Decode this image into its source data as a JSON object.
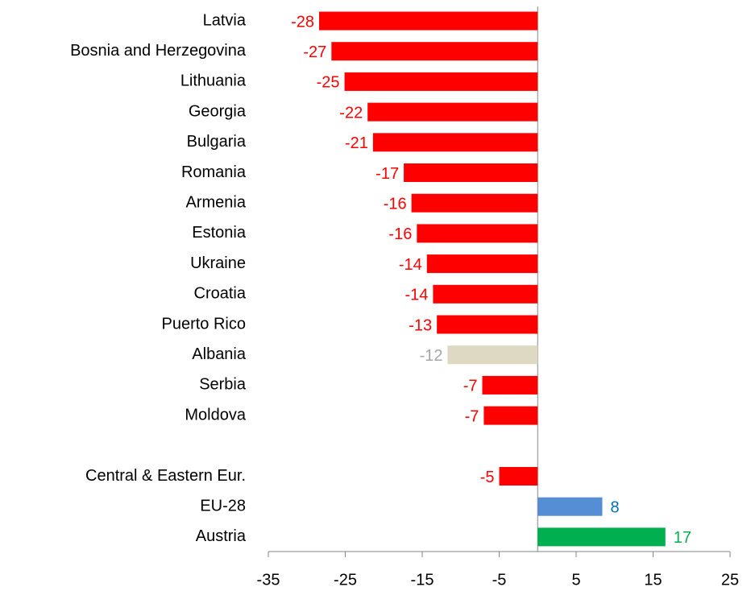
{
  "chart_data": {
    "type": "hbar",
    "categories": [
      "Latvia",
      "Bosnia and Herzegovina",
      "Lithuania",
      "Georgia",
      "Bulgaria",
      "Romania",
      "Armenia",
      "Estonia",
      "Ukraine",
      "Croatia",
      "Puerto Rico",
      "Albania",
      "Serbia",
      "Moldova",
      null,
      "Central & Eastern Eur.",
      "EU-28",
      "Austria"
    ],
    "values": [
      -28.4,
      -26.8,
      -25.1,
      -22.1,
      -21.4,
      -17.4,
      -16.4,
      -15.7,
      -14.4,
      -13.6,
      -13.1,
      -11.7,
      -7.2,
      -7.0,
      null,
      -5.0,
      8.4,
      16.6
    ],
    "value_labels": [
      "-28",
      "-27",
      "-25",
      "-22",
      "-21",
      "-17",
      "-16",
      "-16",
      "-14",
      "-14",
      "-13",
      "-12",
      "-7",
      "-7",
      null,
      "-5",
      "8",
      "17"
    ],
    "colors": [
      "#ff0000",
      "#ff0000",
      "#ff0000",
      "#ff0000",
      "#ff0000",
      "#ff0000",
      "#ff0000",
      "#ff0000",
      "#ff0000",
      "#ff0000",
      "#ff0000",
      "#ddd9c3",
      "#ff0000",
      "#ff0000",
      null,
      "#ff0000",
      "#558ed5",
      "#00b050"
    ],
    "label_colors": [
      "#ff0000",
      "#ff0000",
      "#ff0000",
      "#ff0000",
      "#ff0000",
      "#ff0000",
      "#ff0000",
      "#ff0000",
      "#ff0000",
      "#ff0000",
      "#ff0000",
      "#a6a6a6",
      "#ff0000",
      "#ff0000",
      null,
      "#ff0000",
      "#0070c0",
      "#00b050"
    ],
    "xlim": [
      -35,
      25
    ],
    "xticks": [
      -35,
      -25,
      -15,
      -5,
      5,
      15,
      25
    ],
    "grid": false
  }
}
